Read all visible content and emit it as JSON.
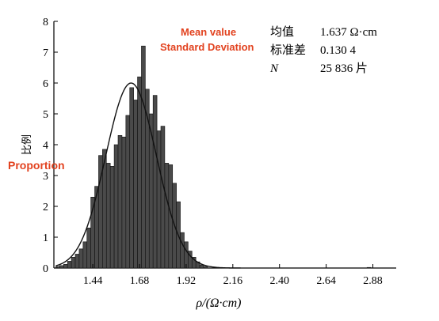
{
  "chart_data": {
    "type": "bar",
    "title": "",
    "xlabel": "ρ/(Ω·cm)",
    "ylabel": "比例",
    "ylabel_annotation": "Proportion",
    "xlim": [
      1.24,
      3.0
    ],
    "ylim": [
      0,
      8
    ],
    "xticks": [
      "1.44",
      "1.68",
      "1.92",
      "2.16",
      "2.40",
      "2.64",
      "2.88"
    ],
    "yticks": [
      "0",
      "1",
      "2",
      "3",
      "4",
      "5",
      "6",
      "7",
      "8"
    ],
    "bin_width": 0.02,
    "bins": [
      {
        "x": 1.26,
        "y": 0.05
      },
      {
        "x": 1.28,
        "y": 0.08
      },
      {
        "x": 1.3,
        "y": 0.12
      },
      {
        "x": 1.32,
        "y": 0.22
      },
      {
        "x": 1.34,
        "y": 0.35
      },
      {
        "x": 1.36,
        "y": 0.45
      },
      {
        "x": 1.38,
        "y": 0.62
      },
      {
        "x": 1.4,
        "y": 0.85
      },
      {
        "x": 1.42,
        "y": 1.3
      },
      {
        "x": 1.44,
        "y": 2.3
      },
      {
        "x": 1.46,
        "y": 2.65
      },
      {
        "x": 1.48,
        "y": 3.65
      },
      {
        "x": 1.5,
        "y": 3.85
      },
      {
        "x": 1.52,
        "y": 3.4
      },
      {
        "x": 1.54,
        "y": 3.3
      },
      {
        "x": 1.56,
        "y": 4.0
      },
      {
        "x": 1.58,
        "y": 4.3
      },
      {
        "x": 1.6,
        "y": 4.25
      },
      {
        "x": 1.62,
        "y": 4.95
      },
      {
        "x": 1.64,
        "y": 5.85
      },
      {
        "x": 1.66,
        "y": 5.45
      },
      {
        "x": 1.68,
        "y": 6.2
      },
      {
        "x": 1.7,
        "y": 7.2
      },
      {
        "x": 1.72,
        "y": 5.8
      },
      {
        "x": 1.74,
        "y": 5.0
      },
      {
        "x": 1.76,
        "y": 5.6
      },
      {
        "x": 1.78,
        "y": 4.45
      },
      {
        "x": 1.8,
        "y": 4.6
      },
      {
        "x": 1.82,
        "y": 3.4
      },
      {
        "x": 1.84,
        "y": 3.35
      },
      {
        "x": 1.86,
        "y": 2.75
      },
      {
        "x": 1.88,
        "y": 2.15
      },
      {
        "x": 1.9,
        "y": 1.15
      },
      {
        "x": 1.92,
        "y": 0.85
      },
      {
        "x": 1.94,
        "y": 0.55
      },
      {
        "x": 1.96,
        "y": 0.35
      },
      {
        "x": 1.98,
        "y": 0.2
      },
      {
        "x": 2.0,
        "y": 0.1
      },
      {
        "x": 2.02,
        "y": 0.05
      },
      {
        "x": 2.86,
        "y": 0.02
      }
    ],
    "fit_curve": {
      "type": "normal",
      "mean": 1.637,
      "std": 0.1304,
      "peak": 6.0
    },
    "legend_box": {
      "rows": [
        {
          "label": "均值",
          "value": "1.637 Ω·cm"
        },
        {
          "label": "标准差",
          "value": "0.130 4"
        },
        {
          "label": "N",
          "value": "25 836 片"
        }
      ]
    },
    "annotations": [
      "Mean value",
      "Standard Deviation"
    ],
    "colors": {
      "bar": "#4a4a4a",
      "bar_stroke": "#111111",
      "curve": "#111111",
      "annotation": "#e2421f"
    }
  }
}
